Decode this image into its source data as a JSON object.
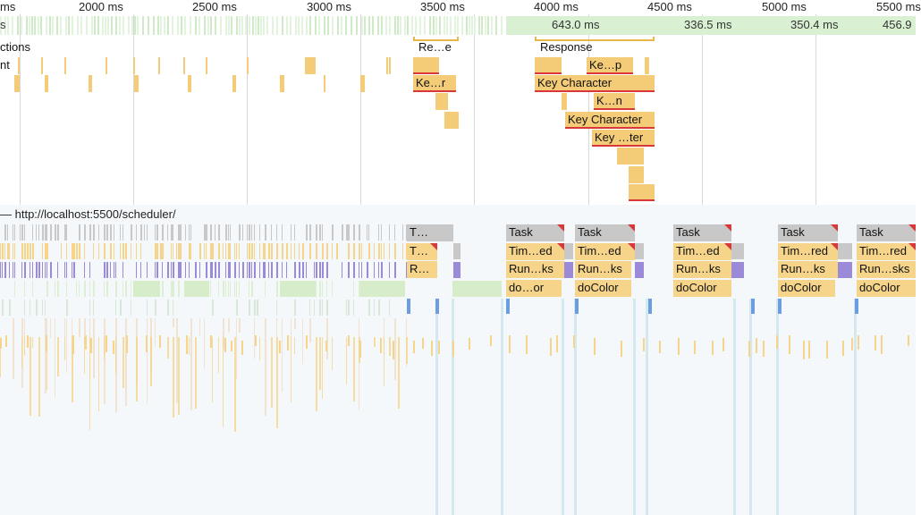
{
  "timeline": {
    "ruler_ticks": [
      "ms",
      "2000 ms",
      "2500 ms",
      "3000 ms",
      "3500 ms",
      "4000 ms",
      "4500 ms",
      "5000 ms",
      "5500 ms"
    ],
    "frames": {
      "track_label": "s",
      "durations": [
        "643.0 ms",
        "336.5 ms",
        "350.4 ms",
        "456.9"
      ]
    }
  },
  "interactions": {
    "track_label": "ctions",
    "items": [
      "Re…e",
      "Response"
    ]
  },
  "input_track": {
    "track_label": "nt",
    "events": [
      "Ke…p",
      "Ke…r",
      "Key Character",
      "K…n",
      "Key Character",
      "Key …ter"
    ]
  },
  "main_thread": {
    "title": "— http://localhost:5500/scheduler/",
    "tasks": [
      "T…",
      "Task",
      "Task",
      "Task",
      "Task",
      "Task"
    ],
    "timers": [
      "T…",
      "Tim…ed",
      "Tim…ed",
      "Tim…ed",
      "Tim…red",
      "Tim…red"
    ],
    "run_tasks": [
      "R…",
      "Run…ks",
      "Run…ks",
      "Run…ks",
      "Run…ks",
      "Run…sks"
    ],
    "functions": [
      "do…or",
      "doColor",
      "doColor",
      "doColor",
      "doColor"
    ]
  },
  "colors": {
    "frame_green": "#d9f0d3",
    "event_yellow": "#f6d58a",
    "task_gray": "#c8c8c8",
    "long_task_red": "#d9383a",
    "script_green": "#d7ecc9",
    "purple": "#9b8ad8",
    "blue": "#6a9ee0"
  }
}
